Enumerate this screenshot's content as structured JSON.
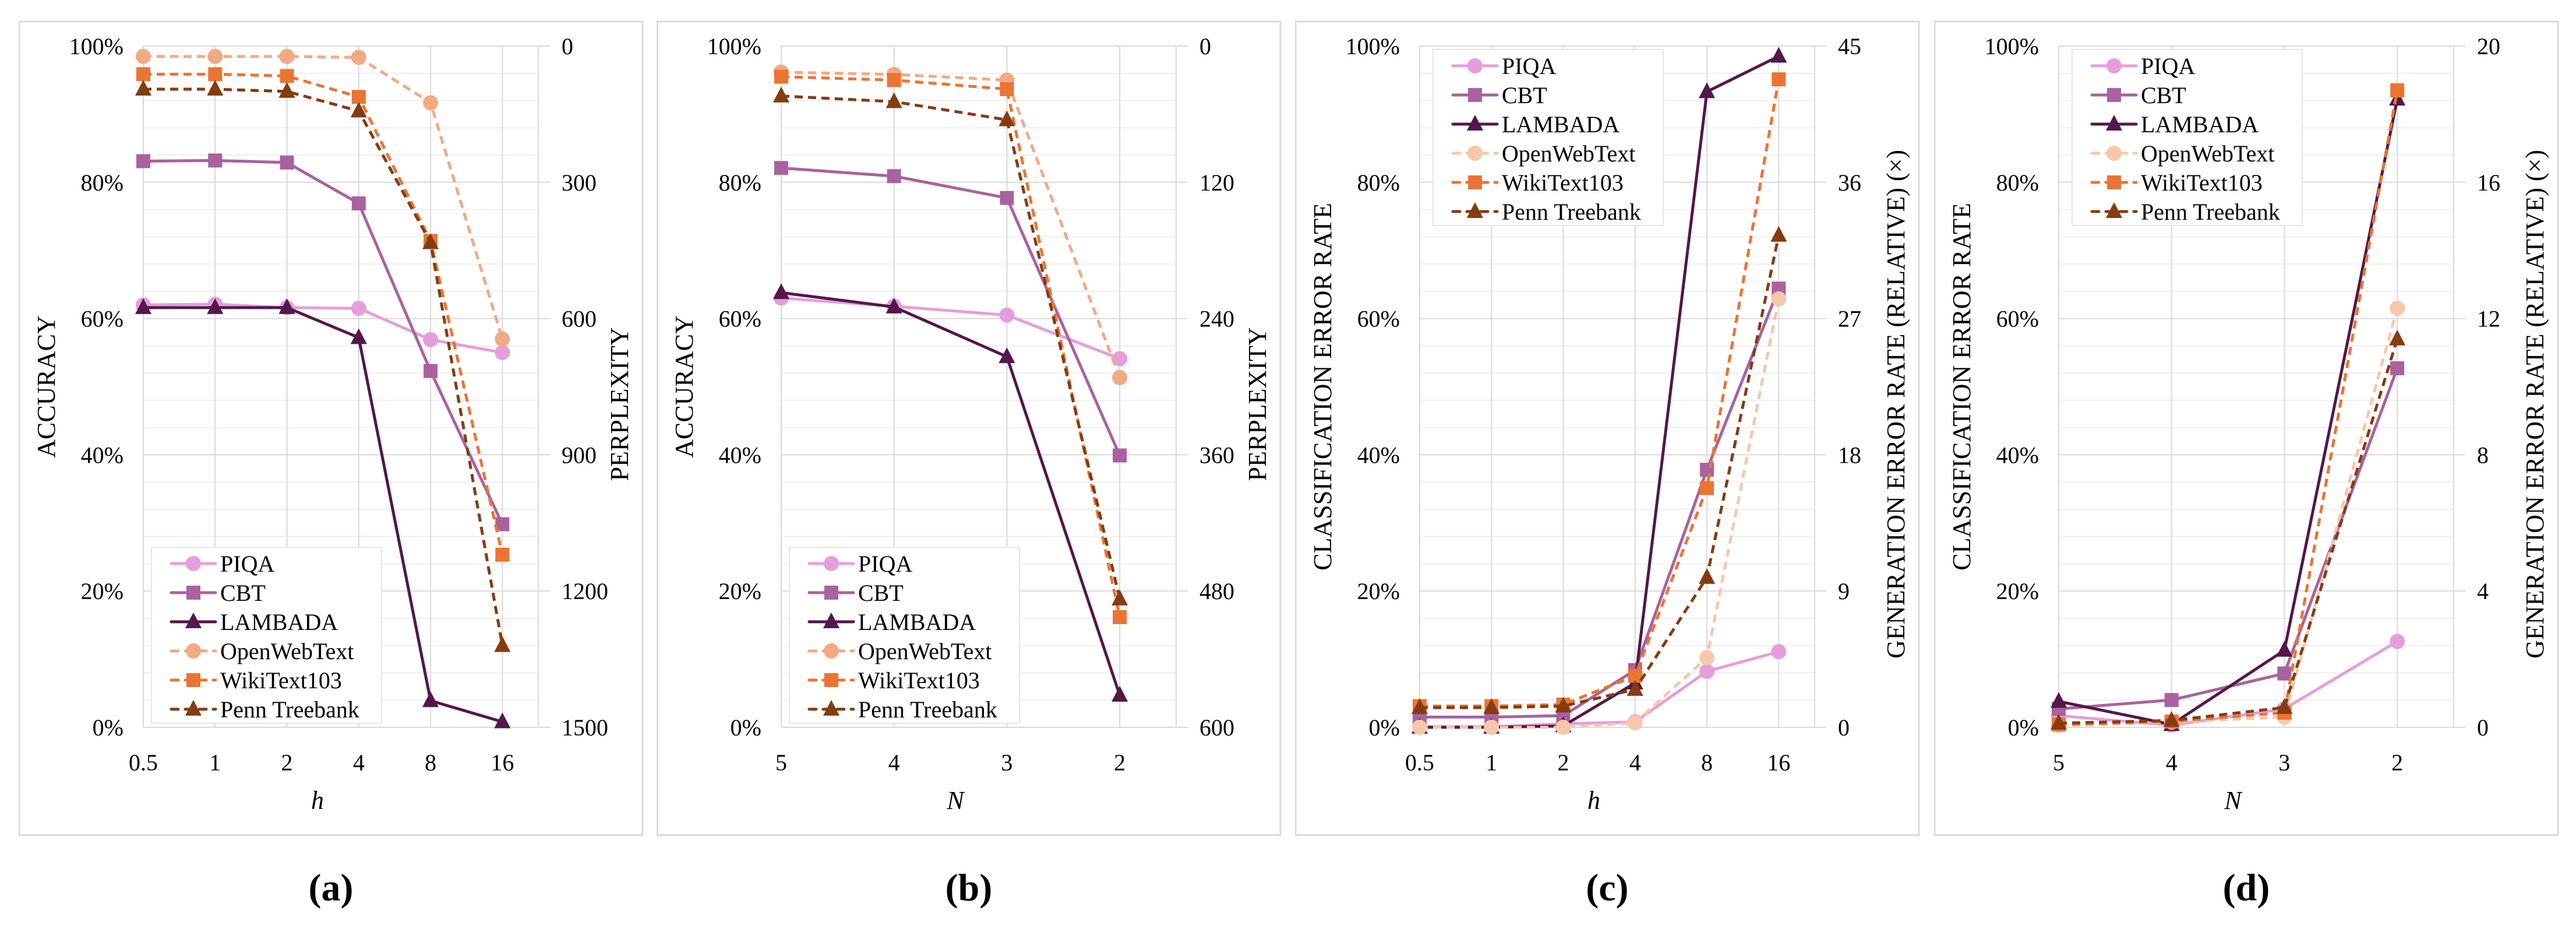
{
  "colors": {
    "PIQA": "#e59edb",
    "CBT": "#a9629f",
    "LAMBADA": "#521849",
    "OpenWebText": "#f2aa84",
    "OpenWebTextLight": "#f6c7ab",
    "WikiText103": "#eb7433",
    "Penn Treebank": "#843c11",
    "grid_major": "#d9d9d9",
    "grid_minor": "#efefef",
    "frame": "#d9d9d9"
  },
  "chart_data": [
    {
      "caption": "(a)",
      "type": "line",
      "xlabel": "h",
      "ylabel": "ACCURACY",
      "y2label": "PERPLEXITY",
      "categories": [
        "0.5",
        "1",
        "2",
        "4",
        "8",
        "16"
      ],
      "ylim": [
        0,
        100
      ],
      "yticks": [
        "0%",
        "20%",
        "40%",
        "60%",
        "80%",
        "100%"
      ],
      "y2lim": [
        1500,
        0
      ],
      "y2ticks": [
        "1500",
        "1200",
        "900",
        "600",
        "300",
        "0"
      ],
      "y2_inverted": true,
      "grid": true,
      "legend_position": "bottom-left",
      "series": [
        {
          "name": "PIQA",
          "axis": "left",
          "marker": "circle",
          "dash": false,
          "values": [
            62.0,
            62.1,
            61.6,
            61.5,
            56.9,
            55.0
          ]
        },
        {
          "name": "CBT",
          "axis": "left",
          "marker": "square",
          "dash": false,
          "values": [
            83.1,
            83.2,
            82.9,
            76.9,
            52.3,
            29.8
          ]
        },
        {
          "name": "LAMBADA",
          "axis": "left",
          "marker": "triangle",
          "dash": false,
          "values": [
            61.6,
            61.6,
            61.6,
            57.2,
            3.9,
            0.8
          ]
        },
        {
          "name": "OpenWebText",
          "axis": "right",
          "marker": "circle",
          "dash": true,
          "values": [
            23,
            23,
            23,
            25,
            125,
            645
          ]
        },
        {
          "name": "WikiText103",
          "axis": "right",
          "marker": "square",
          "dash": true,
          "values": [
            62,
            62,
            66,
            112,
            429,
            1120
          ]
        },
        {
          "name": "Penn Treebank",
          "axis": "right",
          "marker": "triangle",
          "dash": true,
          "values": [
            95,
            95,
            100,
            143,
            433,
            1320
          ]
        }
      ]
    },
    {
      "caption": "(b)",
      "type": "line",
      "xlabel": "N",
      "ylabel": "ACCURACY",
      "y2label": "PERPLEXITY",
      "categories": [
        "5",
        "4",
        "3",
        "2"
      ],
      "ylim": [
        0,
        100
      ],
      "yticks": [
        "0%",
        "20%",
        "40%",
        "60%",
        "80%",
        "100%"
      ],
      "y2lim": [
        600,
        0
      ],
      "y2ticks": [
        "600",
        "480",
        "360",
        "240",
        "120",
        "0"
      ],
      "y2_inverted": true,
      "grid": true,
      "legend_position": "bottom-left",
      "series": [
        {
          "name": "PIQA",
          "axis": "left",
          "marker": "circle",
          "dash": false,
          "values": [
            63.0,
            61.8,
            60.5,
            54.1
          ]
        },
        {
          "name": "CBT",
          "axis": "left",
          "marker": "square",
          "dash": false,
          "values": [
            82.1,
            80.9,
            77.7,
            39.9
          ]
        },
        {
          "name": "LAMBADA",
          "axis": "left",
          "marker": "triangle",
          "dash": false,
          "values": [
            63.8,
            61.7,
            54.4,
            4.7
          ]
        },
        {
          "name": "OpenWebText",
          "axis": "right",
          "marker": "circle",
          "dash": true,
          "values": [
            23,
            25,
            30,
            292
          ]
        },
        {
          "name": "WikiText103",
          "axis": "right",
          "marker": "square",
          "dash": true,
          "values": [
            27,
            30,
            38,
            503
          ]
        },
        {
          "name": "Penn Treebank",
          "axis": "right",
          "marker": "triangle",
          "dash": true,
          "values": [
            44,
            49,
            65,
            487
          ]
        }
      ]
    },
    {
      "caption": "(c)",
      "type": "line",
      "xlabel": "h",
      "ylabel": "CLASSIFICATION ERROR RATE",
      "y2label": "GENERATION ERROR RATE (RELATIVE) (×)",
      "categories": [
        "0.5",
        "1",
        "2",
        "4",
        "8",
        "16"
      ],
      "ylim": [
        0,
        100
      ],
      "yticks": [
        "0%",
        "20%",
        "40%",
        "60%",
        "80%",
        "100%"
      ],
      "y2lim": [
        0,
        45
      ],
      "y2ticks": [
        "0",
        "9",
        "18",
        "27",
        "36",
        "45"
      ],
      "y2_inverted": false,
      "grid": true,
      "legend_position": "top-left",
      "series": [
        {
          "name": "PIQA",
          "axis": "left",
          "marker": "circle",
          "dash": false,
          "values": [
            0.1,
            0.1,
            0.5,
            0.8,
            8.2,
            11.1
          ]
        },
        {
          "name": "CBT",
          "axis": "left",
          "marker": "square",
          "dash": false,
          "values": [
            1.5,
            1.5,
            1.7,
            8.4,
            37.8,
            64.4
          ]
        },
        {
          "name": "LAMBADA",
          "axis": "left",
          "marker": "triangle",
          "dash": false,
          "values": [
            0.0,
            0.0,
            0.2,
            6.5,
            93.3,
            98.5
          ]
        },
        {
          "name": "OpenWebText",
          "axis": "right",
          "marker": "circle",
          "dash": true,
          "values": [
            0.0,
            0.0,
            0.0,
            0.3,
            4.6,
            28.3
          ]
        },
        {
          "name": "WikiText103",
          "axis": "right",
          "marker": "square",
          "dash": true,
          "values": [
            1.4,
            1.4,
            1.5,
            3.4,
            15.8,
            42.8
          ]
        },
        {
          "name": "Penn Treebank",
          "axis": "right",
          "marker": "triangle",
          "dash": true,
          "values": [
            1.3,
            1.3,
            1.4,
            2.5,
            9.9,
            32.5
          ]
        }
      ]
    },
    {
      "caption": "(d)",
      "type": "line",
      "xlabel": "N",
      "ylabel": "CLASSIFICATION ERROR RATE",
      "y2label": "GENERATION ERROR RATE (RELATIVE) (×)",
      "categories": [
        "5",
        "4",
        "3",
        "2"
      ],
      "ylim": [
        0,
        100
      ],
      "yticks": [
        "0%",
        "20%",
        "40%",
        "60%",
        "80%",
        "100%"
      ],
      "y2lim": [
        0,
        20
      ],
      "y2ticks": [
        "0",
        "4",
        "8",
        "12",
        "16",
        "20"
      ],
      "y2_inverted": false,
      "grid": true,
      "legend_position": "top-left",
      "series": [
        {
          "name": "PIQA",
          "axis": "left",
          "marker": "circle",
          "dash": false,
          "values": [
            1.7,
            0.3,
            2.7,
            12.6
          ]
        },
        {
          "name": "CBT",
          "axis": "left",
          "marker": "square",
          "dash": false,
          "values": [
            2.7,
            4.0,
            7.9,
            52.7
          ]
        },
        {
          "name": "LAMBADA",
          "axis": "left",
          "marker": "triangle",
          "dash": false,
          "values": [
            3.8,
            0.4,
            11.3,
            92.2
          ]
        },
        {
          "name": "OpenWebText",
          "axis": "right",
          "marker": "circle",
          "dash": true,
          "values": [
            0.05,
            0.15,
            0.3,
            12.3
          ]
        },
        {
          "name": "WikiText103",
          "axis": "right",
          "marker": "square",
          "dash": true,
          "values": [
            0.08,
            0.17,
            0.43,
            18.7
          ]
        },
        {
          "name": "Penn Treebank",
          "axis": "right",
          "marker": "triangle",
          "dash": true,
          "values": [
            0.12,
            0.2,
            0.58,
            11.4
          ]
        }
      ]
    }
  ]
}
